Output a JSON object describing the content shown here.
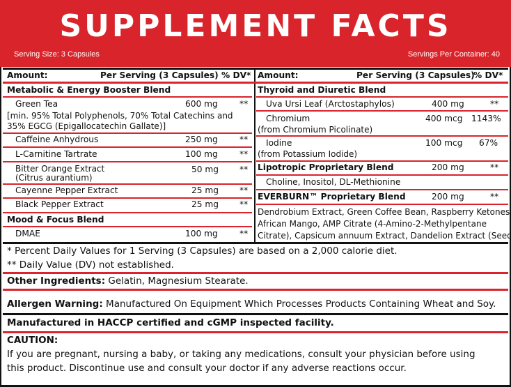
{
  "header": {
    "title": "SUPPLEMENT FACTS",
    "serving_size": "Serving Size: 3 Capsules",
    "servings_per_container": "Servings Per Container: 40"
  },
  "columns": {
    "amount": "Amount:",
    "per_serving": "Per Serving (3 Capsules)",
    "dv": "% DV*"
  },
  "left": {
    "blend1": "Metabolic & Energy Booster Blend",
    "green_tea": {
      "name": "Green Tea",
      "amount": "600 mg",
      "dv": "**"
    },
    "green_tea_note1": "[min. 95% Total Polyphenols, 70% Total Catechins and",
    "green_tea_note2": "35% EGCG (Epigallocatechin Gallate)]",
    "caffeine": {
      "name": "Caffeine Anhydrous",
      "amount": "250 mg",
      "dv": "**"
    },
    "carnitine": {
      "name": "L-Carnitine Tartrate",
      "amount": "100 mg",
      "dv": "**"
    },
    "bitter_orange": {
      "name": "Bitter Orange Extract",
      "sub": "(Citrus aurantium)",
      "amount": "50 mg",
      "dv": "**"
    },
    "cayenne": {
      "name": "Cayenne Pepper Extract",
      "amount": "25 mg",
      "dv": "**"
    },
    "black_pepper": {
      "name": "Black Pepper Extract",
      "amount": "25 mg",
      "dv": "**"
    },
    "blend2": "Mood & Focus Blend",
    "dmae": {
      "name": "DMAE",
      "amount": "100 mg",
      "dv": "**"
    }
  },
  "right": {
    "blend1": "Thyroid and Diuretic Blend",
    "uva": {
      "name": "Uva Ursi Leaf (Arctostaphylos)",
      "amount": "400 mg",
      "dv": "**"
    },
    "chromium": {
      "name": "Chromium",
      "sub": "(from Chromium Picolinate)",
      "amount": "400 mcg",
      "dv": "1143%"
    },
    "iodine": {
      "name": "Iodine",
      "sub": "(from Potassium Iodide)",
      "amount": "100 mcg",
      "dv": "67%"
    },
    "lipo": {
      "name": "Lipotropic Proprietary Blend",
      "amount": "200 mg",
      "dv": "**"
    },
    "lipo_items": "Choline, Inositol, DL-Methionine",
    "everburn": {
      "name": "EVERBURN™ Proprietary Blend",
      "amount": "200 mg",
      "dv": "**"
    },
    "everburn_1": "Dendrobium Extract, Green Coffee Bean, Raspberry Ketones,",
    "everburn_2": "African Mango, AMP Citrate (4-Amino-2-Methylpentane",
    "everburn_3": "Citrate), Capsicum annuum Extract, Dandelion Extract (Seed)"
  },
  "footer": {
    "dv_note": "* Percent Daily Values for 1 Serving (3 Capsules) are based on a 2,000 calorie diet.",
    "dv_not": "** Daily Value (DV) not established.",
    "other_label": "Other Ingredients:",
    "other_text": " Gelatin, Magnesium Stearate.",
    "allergen_label": "Allergen Warning:",
    "allergen_text": " Manufactured On Equipment Which Processes Products Containing Wheat and Soy.",
    "haccp": "Manufactured in HACCP certified and cGMP inspected facility.",
    "caution_label": "CAUTION:",
    "caution_1": "If you are pregnant, nursing a baby, or taking any medications, consult your physician before using",
    "caution_2": "this product. Discontinue use and consult your doctor if any adverse reactions occur."
  },
  "colors": {
    "accent": "#d8242a",
    "text": "#111111"
  }
}
